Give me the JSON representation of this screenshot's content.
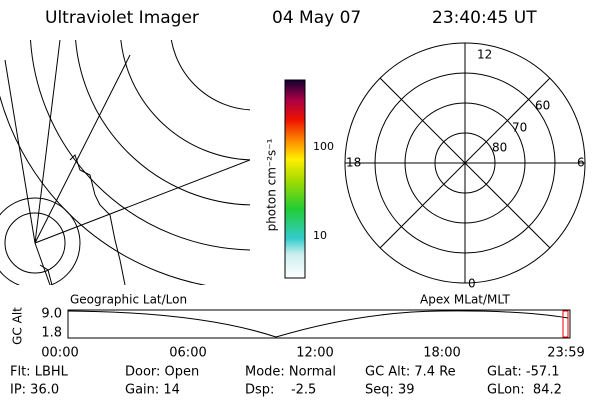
{
  "header": {
    "instrument": "Ultraviolet Imager",
    "date": "04 May 07",
    "time": "23:40:45 UT"
  },
  "colorbar": {
    "unit": "photon cm⁻²s⁻¹",
    "ticks": [
      "100",
      "10"
    ]
  },
  "polar_plot": {
    "mlt_labels": [
      "12",
      "0",
      "18",
      "6"
    ],
    "lat_labels": [
      "60",
      "70",
      "80"
    ]
  },
  "orbit_plot": {
    "left_label": "Geographic Lat/Lon",
    "right_label": "Apex MLat/MLT",
    "y_label": "GC Alt",
    "y_ticks": [
      "9.0",
      "1.8"
    ],
    "x_ticks": [
      "00:00",
      "06:00",
      "12:00",
      "18:00",
      "23:59"
    ]
  },
  "info": {
    "rows": [
      [
        "Flt: LBHL",
        "Door: Open",
        "Mode: Normal",
        "GC Alt: 7.4 Re",
        "GLat: -57.1"
      ],
      [
        "IP: 36.0",
        "Gain: 14",
        "Dsp:    -2.5",
        "Seq: 39",
        "GLon:  84.2"
      ]
    ]
  }
}
